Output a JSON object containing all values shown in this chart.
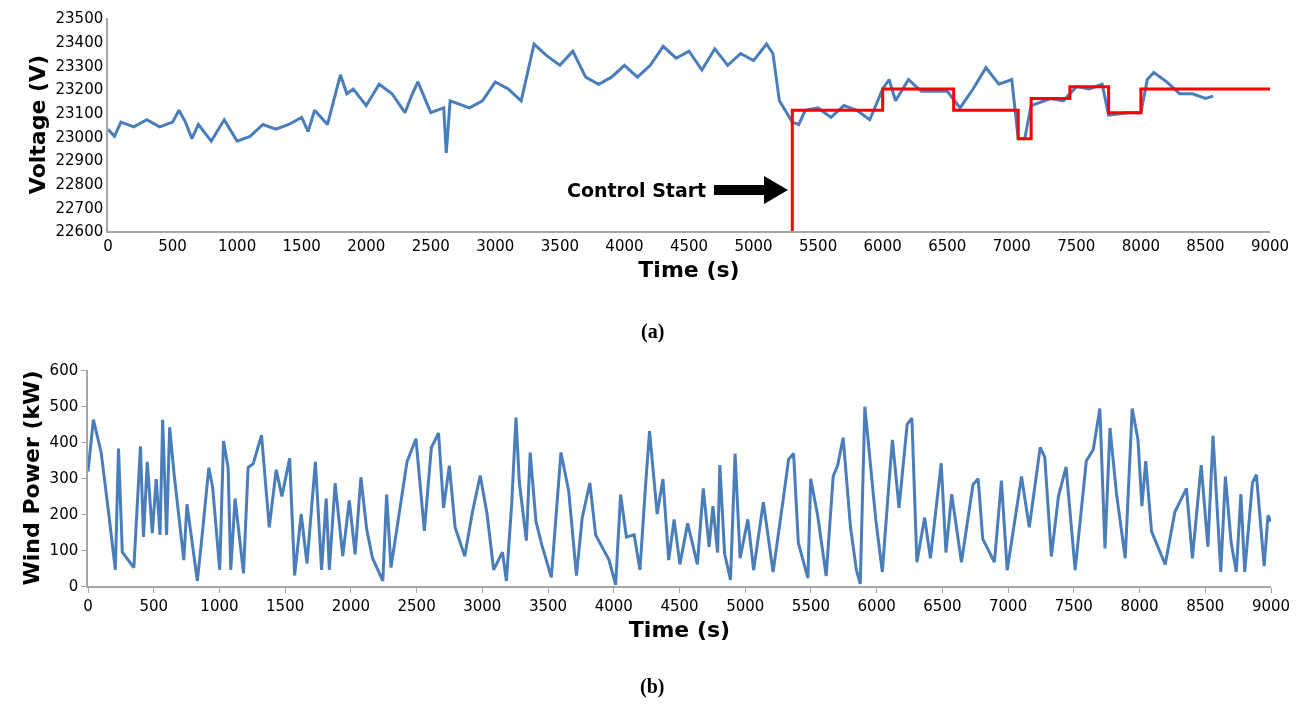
{
  "chart_data": [
    {
      "type": "line",
      "xlabel": "Time (s)",
      "ylabel": "Voltage (V)",
      "xlim": [
        0,
        9000
      ],
      "xticks": [
        0,
        500,
        1000,
        1500,
        2000,
        2500,
        3000,
        3500,
        4000,
        4500,
        5000,
        5500,
        6000,
        6500,
        7000,
        7500,
        8000,
        8500,
        9000
      ],
      "ylim": [
        22600,
        23500
      ],
      "yticks": [
        22600,
        22700,
        22800,
        22900,
        23000,
        23100,
        23200,
        23300,
        23400,
        23500
      ],
      "grid": false,
      "series": [
        {
          "color": "#4a7ebb",
          "x": [
            0,
            50,
            100,
            200,
            300,
            400,
            500,
            550,
            600,
            650,
            700,
            800,
            900,
            1000,
            1100,
            1200,
            1300,
            1400,
            1500,
            1550,
            1600,
            1700,
            1800,
            1850,
            1900,
            2000,
            2100,
            2200,
            2300,
            2350,
            2400,
            2500,
            2600,
            2620,
            2650,
            2800,
            2900,
            3000,
            3100,
            3200,
            3300,
            3400,
            3500,
            3600,
            3700,
            3800,
            3900,
            4000,
            4100,
            4200,
            4300,
            4400,
            4500,
            4600,
            4700,
            4800,
            4900,
            5000,
            5100,
            5150,
            5200,
            5300,
            5350,
            5400,
            5500,
            5600,
            5700,
            5800,
            5900,
            6000,
            6050,
            6100,
            6200,
            6300,
            6500,
            6600,
            6700,
            6800,
            6900,
            7000,
            7050,
            7100,
            7150,
            7300,
            7400,
            7500,
            7600,
            7700,
            7750,
            7900,
            8000,
            8050,
            8100,
            8200,
            8300,
            8400,
            8500,
            8560
          ],
          "values": [
            23030,
            23000,
            23060,
            23040,
            23070,
            23040,
            23060,
            23110,
            23060,
            22990,
            23050,
            22980,
            23070,
            22980,
            23000,
            23050,
            23030,
            23050,
            23080,
            23020,
            23110,
            23050,
            23260,
            23180,
            23200,
            23130,
            23220,
            23180,
            23100,
            23170,
            23230,
            23100,
            23120,
            22930,
            23150,
            23120,
            23150,
            23230,
            23200,
            23150,
            23390,
            23340,
            23300,
            23360,
            23250,
            23220,
            23250,
            23300,
            23250,
            23300,
            23380,
            23330,
            23360,
            23280,
            23370,
            23300,
            23350,
            23320,
            23390,
            23350,
            23150,
            23060,
            23050,
            23110,
            23120,
            23080,
            23130,
            23110,
            23070,
            23200,
            23240,
            23150,
            23240,
            23190,
            23190,
            23120,
            23200,
            23290,
            23220,
            23240,
            22990,
            22990,
            23130,
            23160,
            23150,
            23210,
            23200,
            23220,
            23090,
            23100,
            23100,
            23240,
            23270,
            23230,
            23180,
            23180,
            23160,
            23170
          ]
        },
        {
          "type": "step",
          "color": "#ff0000",
          "x": [
            5300,
            5300,
            6000,
            6550,
            7050,
            7150,
            7450,
            7750,
            8000,
            9000
          ],
          "values": [
            22600,
            23110,
            23200,
            23110,
            22990,
            23160,
            23210,
            23100,
            23200,
            23200
          ]
        }
      ],
      "annotations": [
        "Control Start",
        "(a)"
      ]
    },
    {
      "type": "line",
      "xlabel": "Time (s)",
      "ylabel": "Wind Power (kW)",
      "xlim": [
        0,
        9000
      ],
      "xticks": [
        0,
        500,
        1000,
        1500,
        2000,
        2500,
        3000,
        3500,
        4000,
        4500,
        5000,
        5500,
        6000,
        6500,
        7000,
        7500,
        8000,
        8500,
        9000
      ],
      "ylim": [
        0,
        600
      ],
      "yticks": [
        0,
        100,
        200,
        300,
        400,
        500,
        600
      ],
      "grid": false,
      "series": [
        {
          "color": "#4a7ebb",
          "x": [
            0,
            41,
            100,
            158,
            208,
            232,
            261,
            349,
            399,
            422,
            451,
            489,
            519,
            548,
            568,
            598,
            621,
            656,
            729,
            753,
            832,
            870,
            919,
            948,
            1002,
            1031,
            1066,
            1086,
            1119,
            1183,
            1218,
            1257,
            1320,
            1379,
            1432,
            1475,
            1534,
            1572,
            1622,
            1666,
            1730,
            1777,
            1812,
            1836,
            1880,
            1938,
            1988,
            2032,
            2076,
            2120,
            2164,
            2243,
            2272,
            2305,
            2427,
            2495,
            2559,
            2612,
            2667,
            2705,
            2749,
            2793,
            2866,
            2925,
            2984,
            3036,
            3086,
            3153,
            3183,
            3224,
            3256,
            3282,
            3335,
            3364,
            3408,
            3452,
            3525,
            3598,
            3657,
            3716,
            3760,
            3818,
            3862,
            3964,
            4014,
            4052,
            4096,
            4155,
            4199,
            4243,
            4272,
            4330,
            4374,
            4418,
            4459,
            4503,
            4562,
            4636,
            4681,
            4725,
            4754,
            4790,
            4807,
            4843,
            4888,
            4923,
            4961,
            5020,
            5064,
            5138,
            5212,
            5286,
            5330,
            5368,
            5404,
            5477,
            5498,
            5551,
            5616,
            5669,
            5704,
            5745,
            5801,
            5846,
            5875,
            5910,
            5949,
            5993,
            6043,
            6096,
            6120,
            6170,
            6232,
            6268,
            6306,
            6365,
            6409,
            6491,
            6527,
            6571,
            6645,
            6733,
            6772,
            6807,
            6896,
            6949,
            6993,
            7102,
            7161,
            7244,
            7279,
            7329,
            7383,
            7441,
            7510,
            7595,
            7648,
            7698,
            7737,
            7775,
            7825,
            7891,
            7944,
            7988,
            8018,
            8047,
            8091,
            8195,
            8269,
            8357,
            8402,
            8469,
            8520,
            8559,
            8618,
            8653,
            8697,
            8736,
            8771,
            8800,
            8859,
            8889,
            8948,
            8977,
            9000
          ],
          "values": [
            318,
            462,
            371,
            200,
            45,
            382,
            94,
            51,
            388,
            136,
            345,
            147,
            297,
            142,
            462,
            142,
            441,
            307,
            72,
            227,
            14,
            147,
            329,
            275,
            45,
            403,
            329,
            45,
            243,
            35,
            329,
            340,
            419,
            163,
            323,
            249,
            355,
            29,
            200,
            62,
            345,
            45,
            243,
            45,
            286,
            83,
            238,
            88,
            302,
            158,
            78,
            14,
            254,
            51,
            345,
            409,
            153,
            384,
            425,
            217,
            334,
            163,
            83,
            206,
            307,
            200,
            45,
            94,
            14,
            232,
            468,
            286,
            126,
            371,
            179,
            115,
            24,
            371,
            264,
            29,
            190,
            286,
            142,
            72,
            3,
            254,
            136,
            142,
            45,
            286,
            430,
            200,
            297,
            72,
            185,
            60,
            174,
            60,
            271,
            109,
            222,
            93,
            336,
            90,
            17,
            368,
            77,
            185,
            44,
            233,
            39,
            233,
            352,
            368,
            120,
            22,
            298,
            196,
            28,
            304,
            336,
            412,
            163,
            44,
            6,
            498,
            352,
            185,
            39,
            298,
            406,
            217,
            449,
            466,
            66,
            190,
            77,
            341,
            93,
            255,
            66,
            282,
            298,
            131,
            66,
            293,
            44,
            304,
            163,
            385,
            358,
            82,
            249,
            331,
            44,
            347,
            379,
            493,
            104,
            439,
            255,
            77,
            493,
            406,
            222,
            347,
            152,
            60,
            206,
            271,
            77,
            336,
            109,
            417,
            39,
            304,
            120,
            39,
            255,
            39,
            287,
            309,
            55,
            196,
            179
          ]
        }
      ],
      "annotations": [
        "(b)"
      ]
    }
  ]
}
